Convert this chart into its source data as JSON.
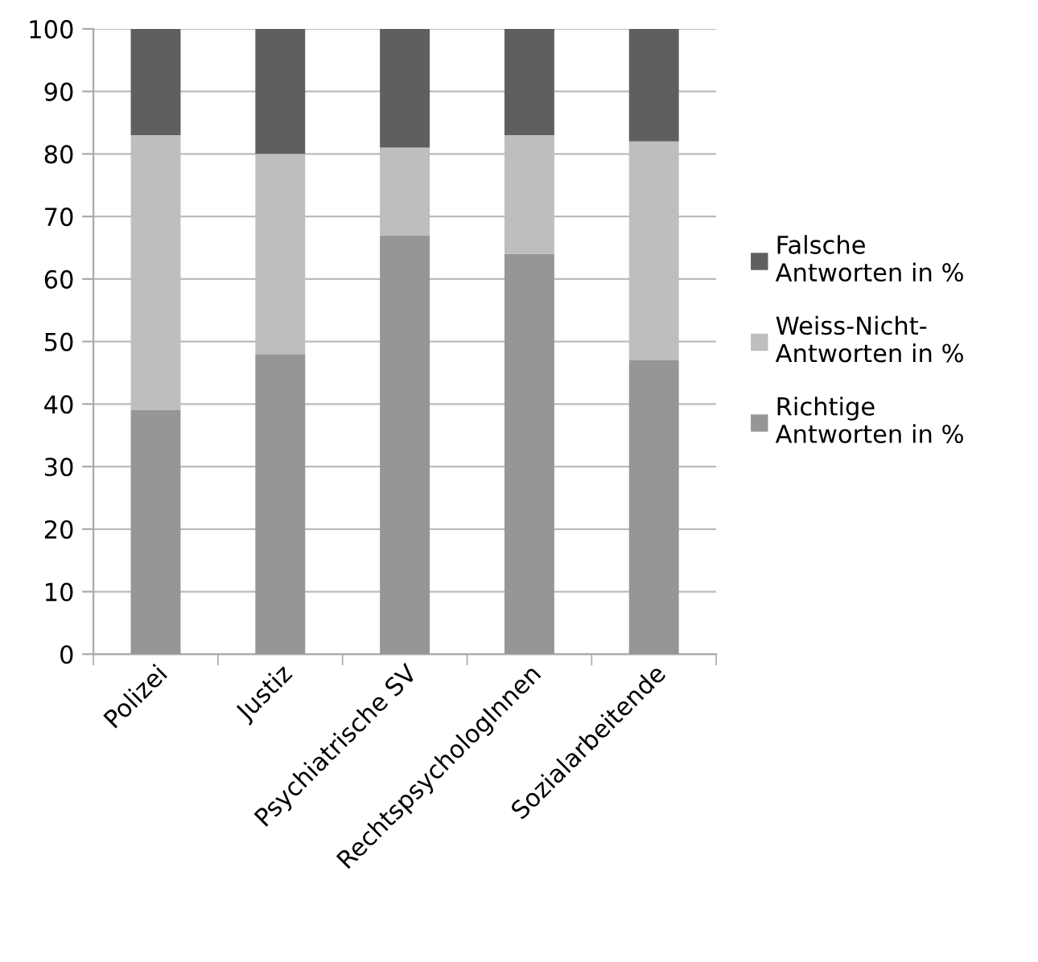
{
  "chart_data": {
    "type": "bar",
    "stacked": true,
    "categories": [
      "Polizei",
      "Justiz",
      "Psychiatrische SV",
      "RechtspsychologInnen",
      "Sozialarbeitende"
    ],
    "series": [
      {
        "name": "Richtige\nAntworten in %",
        "color": "#969696",
        "values": [
          39,
          48,
          67,
          64,
          47
        ]
      },
      {
        "name": "Weiss-Nicht-\nAntworten in %",
        "color": "#bebebe",
        "values": [
          44,
          32,
          14,
          19,
          35
        ]
      },
      {
        "name": "Falsche\nAntworten in %",
        "color": "#5f5f5f",
        "values": [
          17,
          20,
          19,
          17,
          18
        ]
      }
    ],
    "ylim": [
      0,
      100
    ],
    "yticks": [
      0,
      10,
      20,
      30,
      40,
      50,
      60,
      70,
      80,
      90,
      100
    ],
    "grid": "y",
    "legend": "right"
  }
}
